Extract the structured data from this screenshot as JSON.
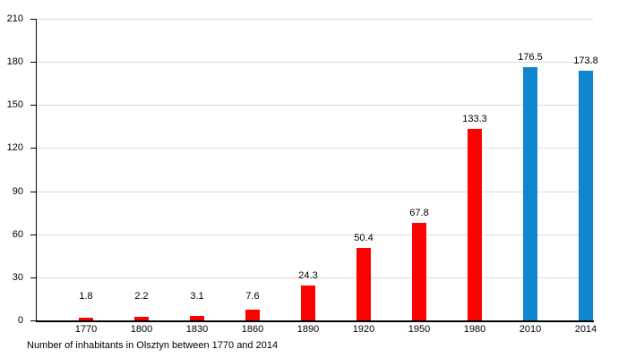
{
  "chart_data": {
    "type": "bar",
    "categories": [
      "1770",
      "1800",
      "1830",
      "1860",
      "1890",
      "1920",
      "1950",
      "1980",
      "2010",
      "2014"
    ],
    "values": [
      1.8,
      2.2,
      3.1,
      7.6,
      24.3,
      50.4,
      67.8,
      133.3,
      176.5,
      173.8
    ],
    "value_labels": [
      "1.8",
      "2.2",
      "3.1",
      "7.6",
      "24.3",
      "50.4",
      "67.8",
      "133.3",
      "176.5",
      "173.8"
    ],
    "bar_colors": [
      "#ff0000",
      "#ff0000",
      "#ff0000",
      "#ff0000",
      "#ff0000",
      "#ff0000",
      "#ff0000",
      "#ff0000",
      "#1086ce",
      "#1086ce"
    ],
    "title": "",
    "caption": "Number of inhabitants in Olsztyn between 1770 and 2014",
    "xlabel": "",
    "ylabel": "",
    "ylim": [
      0,
      210
    ],
    "yticks": [
      0,
      30,
      60,
      90,
      120,
      150,
      180,
      210
    ],
    "grid": true,
    "legend": "none",
    "colors": {
      "historical_bar": "#ff0000",
      "recent_bar": "#1086ce",
      "gridline": "#d9d9d9",
      "axis": "#000000",
      "text": "#000000",
      "background": "#ffffff"
    }
  }
}
